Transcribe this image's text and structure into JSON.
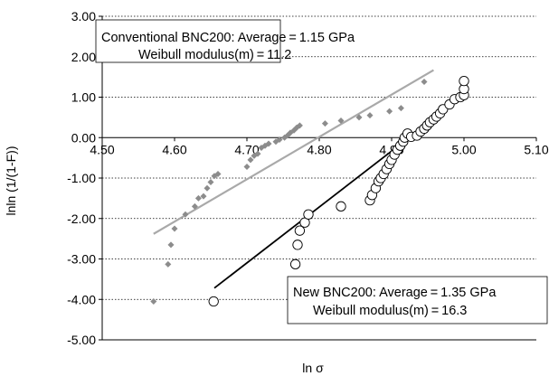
{
  "chart_data": {
    "type": "scatter",
    "xlabel": "ln σ",
    "ylabel": "lnln (1/(1-F))",
    "xlim": [
      4.5,
      5.1
    ],
    "ylim": [
      -5.0,
      3.0
    ],
    "x_ticks": [
      "4.50",
      "4.60",
      "4.70",
      "4.80",
      "4.90",
      "5.00",
      "5.10"
    ],
    "y_ticks": [
      "3.00",
      "2.00",
      "1.00",
      "0.00",
      "-1.00",
      "-2.00",
      "-3.00",
      "-4.00",
      "-5.00"
    ],
    "grid": "horizontal dotted",
    "series": [
      {
        "name": "Conventional BNC200",
        "marker": "diamond",
        "color": "#8c8c8c",
        "points": [
          [
            4.571,
            -4.05
          ],
          [
            4.591,
            -3.13
          ],
          [
            4.595,
            -2.65
          ],
          [
            4.6,
            -2.25
          ],
          [
            4.615,
            -1.9
          ],
          [
            4.628,
            -1.7
          ],
          [
            4.633,
            -1.5
          ],
          [
            4.64,
            -1.45
          ],
          [
            4.645,
            -1.25
          ],
          [
            4.65,
            -1.1
          ],
          [
            4.655,
            -0.95
          ],
          [
            4.66,
            -0.9
          ],
          [
            4.7,
            -0.72
          ],
          [
            4.705,
            -0.55
          ],
          [
            4.71,
            -0.45
          ],
          [
            4.715,
            -0.4
          ],
          [
            4.72,
            -0.25
          ],
          [
            4.725,
            -0.2
          ],
          [
            4.73,
            -0.15
          ],
          [
            4.74,
            -0.1
          ],
          [
            4.745,
            -0.05
          ],
          [
            4.752,
            0.0
          ],
          [
            4.756,
            0.05
          ],
          [
            4.76,
            0.12
          ],
          [
            4.765,
            0.18
          ],
          [
            4.769,
            0.25
          ],
          [
            4.773,
            0.3
          ],
          [
            4.808,
            0.35
          ],
          [
            4.83,
            0.42
          ],
          [
            4.855,
            0.5
          ],
          [
            4.87,
            0.55
          ],
          [
            4.897,
            0.65
          ],
          [
            4.913,
            0.73
          ],
          [
            4.945,
            1.38
          ]
        ],
        "fit": {
          "x": [
            4.571,
            4.958
          ],
          "y": [
            -2.38,
            1.67
          ],
          "color": "#a9a9a9"
        }
      },
      {
        "name": "New BNC200",
        "marker": "circle",
        "color": "#000000",
        "points": [
          [
            4.654,
            -4.05
          ],
          [
            4.767,
            -3.13
          ],
          [
            4.77,
            -2.65
          ],
          [
            4.773,
            -2.3
          ],
          [
            4.78,
            -2.1
          ],
          [
            4.785,
            -1.9
          ],
          [
            4.83,
            -1.7
          ],
          [
            4.87,
            -1.55
          ],
          [
            4.873,
            -1.42
          ],
          [
            4.878,
            -1.25
          ],
          [
            4.882,
            -1.08
          ],
          [
            4.885,
            -1.0
          ],
          [
            4.889,
            -0.9
          ],
          [
            4.893,
            -0.78
          ],
          [
            4.897,
            -0.65
          ],
          [
            4.9,
            -0.55
          ],
          [
            4.904,
            -0.42
          ],
          [
            4.908,
            -0.3
          ],
          [
            4.912,
            -0.2
          ],
          [
            4.916,
            -0.1
          ],
          [
            4.918,
            0.0
          ],
          [
            4.922,
            0.1
          ],
          [
            4.927,
            0.02
          ],
          [
            4.935,
            0.05
          ],
          [
            4.94,
            0.15
          ],
          [
            4.945,
            0.22
          ],
          [
            4.949,
            0.3
          ],
          [
            4.953,
            0.38
          ],
          [
            4.958,
            0.45
          ],
          [
            4.962,
            0.52
          ],
          [
            4.967,
            0.6
          ],
          [
            4.971,
            0.7
          ],
          [
            4.98,
            0.82
          ],
          [
            4.987,
            0.95
          ],
          [
            4.995,
            1.0
          ],
          [
            5.0,
            1.05
          ],
          [
            5.0,
            1.2
          ],
          [
            5.0,
            1.4
          ]
        ],
        "fit": {
          "x": [
            4.655,
            5.0
          ],
          "y": [
            -3.72,
            1.05
          ],
          "color": "#000000"
        }
      }
    ],
    "annotations": [
      {
        "lines": [
          "Conventional BNC200: Average = 1.15 GPa",
          "Weibull modulus(m) = 11.2"
        ]
      },
      {
        "lines": [
          "New BNC200: Average = 1.35 GPa",
          "Weibull modulus(m) = 16.3"
        ]
      }
    ]
  }
}
